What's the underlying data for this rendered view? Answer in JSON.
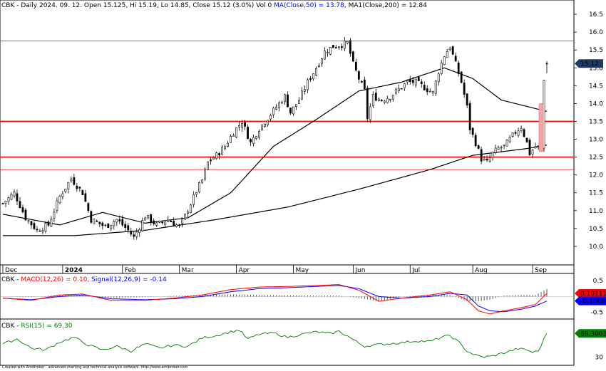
{
  "header": {
    "price_line": "CBK - Daily 2024. 09. 12. Open 15.125, Hi 15.19, Lo 14.85, Close 15.12 (3.0%) Vol 0",
    "ma50_label": "MA(Close,50) = 13.78,",
    "ma200_label": "MA1(Close,200) = 12.84"
  },
  "macd_header": {
    "prefix": "CBK -",
    "macd_label": "MACD(12,26) = 0.10,",
    "signal_label": "Signal(12,26,9) = -0.14"
  },
  "rsi_header": {
    "prefix": "CBK -",
    "rsi_label": "RSI(15) = 69.30"
  },
  "badges": {
    "price": "15.12",
    "macd": "0.101117",
    "signal": "-0.136866",
    "rsi": "69.3003"
  },
  "footer": "Created with AmiBroker - advanced charting and technical analysis software. http://www.amibroker.com",
  "colors": {
    "bull": "#ffffff",
    "bear": "#000000",
    "hline": "#ff0000",
    "macd": "#ff0000",
    "signal": "#0000ff",
    "rsi": "#008000",
    "badge_dark": "#1f3a5f",
    "badge_red": "#ff0000",
    "badge_blue": "#0000ff",
    "badge_green": "#008000"
  },
  "chart_data": [
    {
      "type": "candlestick",
      "title": "CBK - Daily",
      "ylim": [
        9.6,
        16.8
      ],
      "y_ticks": [
        "10.0",
        "10.5",
        "11.0",
        "11.5",
        "12.0",
        "12.5",
        "13.0",
        "13.5",
        "14.0",
        "14.5",
        "15.0",
        "15.5",
        "16.0",
        "16.5"
      ],
      "x_ticks": [
        {
          "label": "Dec",
          "day": 0
        },
        {
          "label": "2024",
          "day": 21
        },
        {
          "label": "Feb",
          "day": 42
        },
        {
          "label": "Mar",
          "day": 62
        },
        {
          "label": "Apr",
          "day": 82
        },
        {
          "label": "May",
          "day": 102
        },
        {
          "label": "Jun",
          "day": 123
        },
        {
          "label": "Jul",
          "day": 143
        },
        {
          "label": "Aug",
          "day": 165
        },
        {
          "label": "Sep",
          "day": 186
        }
      ],
      "horizontal_lines": [
        {
          "y": 15.75,
          "weight": "thin"
        },
        {
          "y": 13.5,
          "weight": "thick"
        },
        {
          "y": 12.5,
          "weight": "thick"
        },
        {
          "y": 12.15,
          "weight": "thin"
        }
      ],
      "ma50_anchors": [
        [
          0,
          10.9
        ],
        [
          20,
          10.6
        ],
        [
          35,
          10.95
        ],
        [
          50,
          10.65
        ],
        [
          65,
          10.8
        ],
        [
          80,
          11.5
        ],
        [
          95,
          12.8
        ],
        [
          110,
          13.55
        ],
        [
          125,
          14.35
        ],
        [
          140,
          14.6
        ],
        [
          155,
          15.0
        ],
        [
          165,
          14.7
        ],
        [
          175,
          14.1
        ],
        [
          185,
          13.9
        ],
        [
          191,
          13.78
        ]
      ],
      "ma200_anchors": [
        [
          0,
          10.3
        ],
        [
          25,
          10.3
        ],
        [
          50,
          10.45
        ],
        [
          75,
          10.75
        ],
        [
          100,
          11.1
        ],
        [
          125,
          11.6
        ],
        [
          150,
          12.15
        ],
        [
          165,
          12.55
        ],
        [
          175,
          12.65
        ],
        [
          185,
          12.75
        ],
        [
          191,
          12.84
        ]
      ],
      "close_anchors": [
        [
          0,
          11.2
        ],
        [
          4,
          11.5
        ],
        [
          8,
          10.8
        ],
        [
          12,
          10.45
        ],
        [
          16,
          10.6
        ],
        [
          20,
          11.4
        ],
        [
          24,
          11.9
        ],
        [
          28,
          11.5
        ],
        [
          31,
          10.75
        ],
        [
          36,
          10.55
        ],
        [
          40,
          10.75
        ],
        [
          44,
          10.45
        ],
        [
          46,
          10.25
        ],
        [
          50,
          10.85
        ],
        [
          54,
          10.6
        ],
        [
          58,
          10.75
        ],
        [
          62,
          10.55
        ],
        [
          64,
          10.85
        ],
        [
          66,
          11.2
        ],
        [
          68,
          11.55
        ],
        [
          70,
          11.85
        ],
        [
          72,
          12.35
        ],
        [
          75,
          12.55
        ],
        [
          78,
          12.8
        ],
        [
          81,
          13.2
        ],
        [
          84,
          13.5
        ],
        [
          87,
          12.9
        ],
        [
          90,
          13.3
        ],
        [
          93,
          13.6
        ],
        [
          96,
          13.9
        ],
        [
          99,
          14.2
        ],
        [
          101,
          13.75
        ],
        [
          104,
          14.1
        ],
        [
          107,
          14.6
        ],
        [
          110,
          15.0
        ],
        [
          113,
          15.45
        ],
        [
          116,
          15.6
        ],
        [
          119,
          15.65
        ],
        [
          121,
          15.7
        ],
        [
          123,
          15.1
        ],
        [
          125,
          14.7
        ],
        [
          127,
          14.35
        ],
        [
          128,
          13.6
        ],
        [
          130,
          14.2
        ],
        [
          133,
          14.1
        ],
        [
          136,
          14.2
        ],
        [
          139,
          14.4
        ],
        [
          142,
          14.6
        ],
        [
          145,
          14.6
        ],
        [
          148,
          14.45
        ],
        [
          151,
          14.3
        ],
        [
          153,
          14.9
        ],
        [
          155,
          15.35
        ],
        [
          157,
          15.6
        ],
        [
          159,
          15.1
        ],
        [
          161,
          14.6
        ],
        [
          163,
          13.9
        ],
        [
          164,
          13.3
        ],
        [
          166,
          12.9
        ],
        [
          168,
          12.45
        ],
        [
          170,
          12.35
        ],
        [
          172,
          12.6
        ],
        [
          174,
          12.75
        ],
        [
          176,
          12.8
        ],
        [
          178,
          13.0
        ],
        [
          180,
          13.2
        ],
        [
          182,
          13.35
        ],
        [
          184,
          12.9
        ],
        [
          185,
          12.6
        ],
        [
          187,
          12.8
        ],
        [
          189,
          12.75
        ],
        [
          190,
          14.65
        ],
        [
          191,
          15.12
        ]
      ],
      "ohlc_last": {
        "open": 15.125,
        "high": 15.19,
        "low": 14.85,
        "close": 15.12
      },
      "ma50_last": 13.78,
      "ma200_last": 12.84
    },
    {
      "type": "line",
      "title": "MACD(12,26)",
      "ylim": [
        -0.62,
        0.55
      ],
      "y_ticks": [
        "0.5",
        "-0.5"
      ],
      "series": [
        {
          "name": "MACD(12,26)",
          "color": "#ff0000",
          "anchors": [
            [
              0,
              -0.05
            ],
            [
              10,
              -0.12
            ],
            [
              20,
              0.05
            ],
            [
              28,
              0.08
            ],
            [
              38,
              -0.12
            ],
            [
              50,
              -0.12
            ],
            [
              60,
              -0.05
            ],
            [
              70,
              0.05
            ],
            [
              80,
              0.22
            ],
            [
              90,
              0.3
            ],
            [
              100,
              0.32
            ],
            [
              110,
              0.35
            ],
            [
              118,
              0.38
            ],
            [
              125,
              0.2
            ],
            [
              132,
              -0.15
            ],
            [
              140,
              -0.05
            ],
            [
              150,
              0.05
            ],
            [
              157,
              0.15
            ],
            [
              163,
              -0.1
            ],
            [
              167,
              -0.45
            ],
            [
              171,
              -0.55
            ],
            [
              176,
              -0.45
            ],
            [
              182,
              -0.35
            ],
            [
              187,
              -0.25
            ],
            [
              191,
              0.1
            ]
          ]
        },
        {
          "name": "Signal(12,26,9)",
          "color": "#0000ff",
          "anchors": [
            [
              0,
              -0.05
            ],
            [
              10,
              -0.1
            ],
            [
              20,
              0.0
            ],
            [
              28,
              0.05
            ],
            [
              38,
              -0.07
            ],
            [
              50,
              -0.1
            ],
            [
              60,
              -0.07
            ],
            [
              70,
              0.0
            ],
            [
              80,
              0.15
            ],
            [
              90,
              0.25
            ],
            [
              100,
              0.28
            ],
            [
              110,
              0.32
            ],
            [
              118,
              0.35
            ],
            [
              125,
              0.25
            ],
            [
              132,
              0.0
            ],
            [
              140,
              -0.05
            ],
            [
              150,
              0.0
            ],
            [
              157,
              0.1
            ],
            [
              163,
              0.05
            ],
            [
              167,
              -0.3
            ],
            [
              171,
              -0.45
            ],
            [
              176,
              -0.48
            ],
            [
              182,
              -0.4
            ],
            [
              187,
              -0.3
            ],
            [
              191,
              -0.14
            ]
          ]
        }
      ],
      "macd_last": 0.1,
      "signal_last": -0.14
    },
    {
      "type": "line",
      "title": "RSI(15)",
      "ylim": [
        20,
        85
      ],
      "y_ticks": [
        "30"
      ],
      "series": [
        {
          "name": "RSI(15)",
          "color": "#008000",
          "anchors": [
            [
              0,
              52
            ],
            [
              5,
              60
            ],
            [
              10,
              45
            ],
            [
              15,
              42
            ],
            [
              20,
              55
            ],
            [
              25,
              63
            ],
            [
              30,
              50
            ],
            [
              35,
              42
            ],
            [
              40,
              48
            ],
            [
              45,
              40
            ],
            [
              50,
              52
            ],
            [
              55,
              45
            ],
            [
              60,
              50
            ],
            [
              65,
              48
            ],
            [
              70,
              62
            ],
            [
              75,
              66
            ],
            [
              80,
              72
            ],
            [
              83,
              75
            ],
            [
              86,
              60
            ],
            [
              90,
              68
            ],
            [
              95,
              70
            ],
            [
              100,
              63
            ],
            [
              105,
              68
            ],
            [
              110,
              72
            ],
            [
              115,
              69
            ],
            [
              118,
              73
            ],
            [
              121,
              65
            ],
            [
              124,
              56
            ],
            [
              127,
              48
            ],
            [
              130,
              50
            ],
            [
              135,
              52
            ],
            [
              140,
              54
            ],
            [
              145,
              57
            ],
            [
              150,
              56
            ],
            [
              154,
              63
            ],
            [
              157,
              66
            ],
            [
              160,
              55
            ],
            [
              163,
              40
            ],
            [
              166,
              33
            ],
            [
              169,
              30
            ],
            [
              172,
              32
            ],
            [
              175,
              36
            ],
            [
              178,
              40
            ],
            [
              181,
              44
            ],
            [
              184,
              42
            ],
            [
              186,
              38
            ],
            [
              188,
              40
            ],
            [
              190,
              60
            ],
            [
              191,
              69.3
            ]
          ]
        }
      ],
      "rsi_last": 69.3
    }
  ]
}
